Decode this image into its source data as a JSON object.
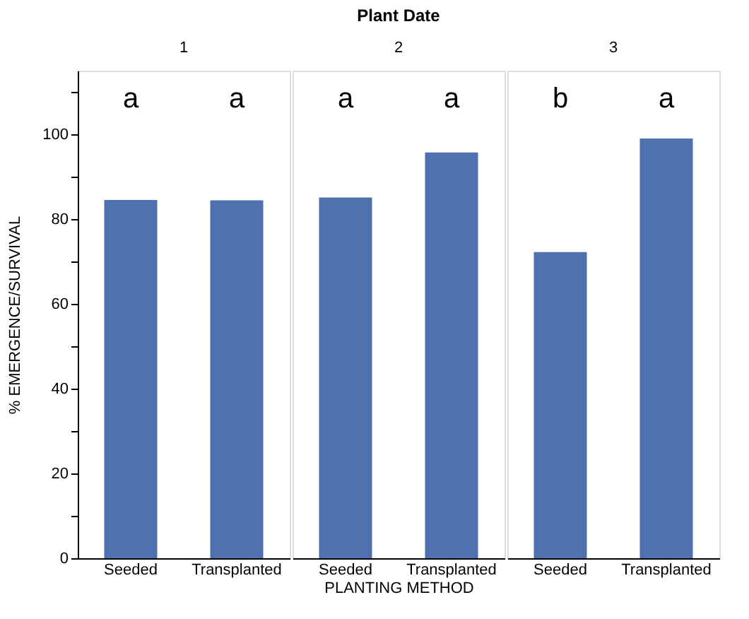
{
  "chart_data": [
    {
      "type": "bar",
      "subtitle": "1",
      "ylabel": "% EMERGENCE/SURVIVAL",
      "categories": [
        "Seeded",
        "Transplanted"
      ],
      "values": [
        84.5,
        84.4
      ],
      "color": "#4f71b0",
      "ylim": [
        0,
        115
      ],
      "yticks": [
        0,
        {
          "value": 10,
          "label": null
        },
        20,
        {
          "value": 30,
          "label": null
        },
        40,
        {
          "value": 50,
          "label": null
        },
        60,
        {
          "value": 70,
          "label": null
        },
        80,
        {
          "value": 90,
          "label": null
        },
        100,
        {
          "value": 110,
          "label": null
        }
      ],
      "annotations": [
        "a",
        "a"
      ]
    },
    {
      "type": "bar",
      "title": "Plant Date",
      "subtitle": "2",
      "xlabel": "PLANTING METHOD",
      "categories": [
        "Seeded",
        "Transplanted"
      ],
      "values": [
        85.1,
        95.7
      ],
      "color": "#4f71b0",
      "ylim": [
        0,
        115
      ],
      "tick_labels": "x",
      "annotations": [
        "a",
        "a"
      ]
    },
    {
      "type": "bar",
      "subtitle": "3",
      "categories": [
        "Seeded",
        "Transplanted"
      ],
      "values": [
        72.2,
        99.0
      ],
      "color": "#4f71b0",
      "ylim": [
        0,
        115
      ],
      "tick_labels": "x",
      "annotations": [
        "b",
        "a"
      ]
    }
  ]
}
